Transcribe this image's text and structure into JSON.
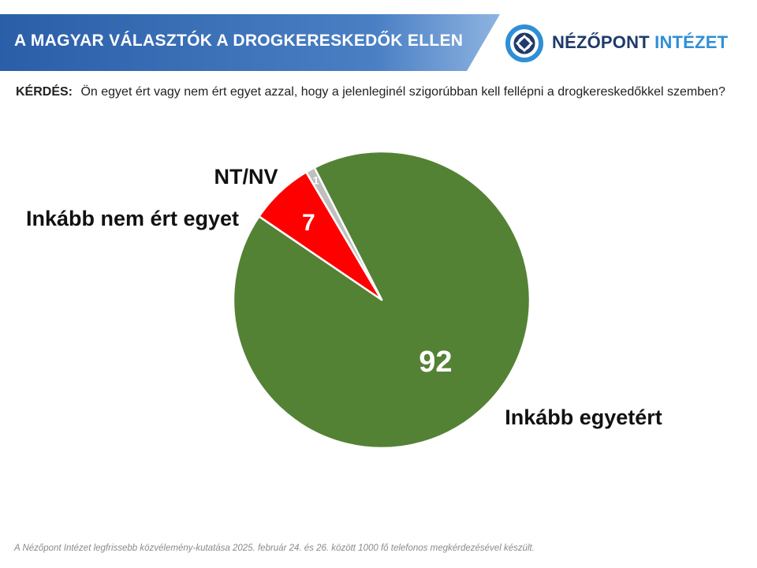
{
  "header": {
    "title": "A MAGYAR VÁLASZTÓK A DROGKERESKEDŐK ELLEN",
    "logo_main": "NÉZŐPONT",
    "logo_accent": "INTÉZET",
    "logo_icon": "nezopont-logo-icon",
    "colors": {
      "banner_dark": "#2a5fa8",
      "banner_light": "#8eb3e0",
      "logo_navy": "#1f3a6b",
      "logo_blue": "#2f8fd6"
    }
  },
  "question": {
    "label": "KÉRDÉS:",
    "text": "Ön egyet ért vagy nem ért egyet azzal, hogy a jelenleginél szigorúbban kell fellépni a drogkereskedőkkel szemben?"
  },
  "chart_data": {
    "type": "pie",
    "start_angle_deg": 333,
    "direction": "clockwise",
    "slices": [
      {
        "label": "Inkább egyetért",
        "value": 92,
        "data_label": "92",
        "color": "#548235"
      },
      {
        "label": "Inkább nem ért egyet",
        "value": 7,
        "data_label": "7",
        "color": "#ff0000"
      },
      {
        "label": "NT/NV",
        "value": 1,
        "data_label": "1",
        "color": "#bfbfbf"
      }
    ]
  },
  "footnote": "A Nézőpont Intézet legfrissebb közvélemény-kutatása 2025. február 24. és 26. között 1000 fő telefonos megkérdezésével készült."
}
